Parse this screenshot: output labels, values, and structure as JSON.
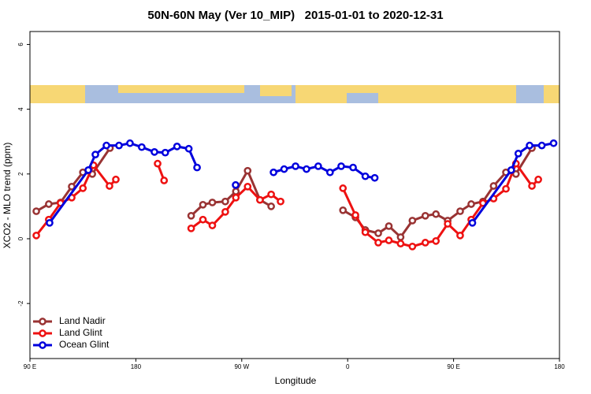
{
  "chart_data": {
    "type": "line",
    "title": "50N-60N May (Ver 10_MIP)   2015-01-01 to 2020-12-31",
    "x_label": "Longitude",
    "y_label": "XCO2 - MLO trend (ppm)",
    "xlim": [
      90,
      540
    ],
    "ylim": [
      -3.7,
      6.4
    ],
    "xticks": [
      {
        "value": 90,
        "label": "90 E"
      },
      {
        "value": 180,
        "label": "180"
      },
      {
        "value": 270,
        "label": "90 W"
      },
      {
        "value": 360,
        "label": "0"
      },
      {
        "value": 450,
        "label": "90 E"
      },
      {
        "value": 540,
        "label": "180"
      }
    ],
    "yticks": [
      -2,
      0,
      2,
      4,
      6
    ],
    "legend": "bottom-left",
    "series": [
      {
        "name": "Land Nadir",
        "color": "#993333",
        "x": [
          95.4,
          106,
          116,
          125.5,
          135,
          143,
          158,
          null,
          227,
          237,
          245,
          256,
          265,
          275,
          285.5,
          295,
          null,
          356,
          366.6,
          375,
          386,
          395,
          405,
          415,
          426,
          435,
          445,
          455.6,
          465,
          475,
          484,
          494.5,
          503,
          516.6
        ],
        "values": [
          0.85,
          1.07,
          1.12,
          1.61,
          2.05,
          2.0,
          2.8,
          null,
          0.71,
          1.05,
          1.12,
          1.15,
          1.46,
          2.1,
          1.2,
          1.0,
          null,
          0.88,
          0.66,
          0.27,
          0.17,
          0.39,
          0.05,
          0.56,
          0.71,
          0.76,
          0.56,
          0.85,
          1.07,
          1.15,
          1.63,
          2.05,
          2.0,
          2.8
        ]
      },
      {
        "name": "Land Glint",
        "color": "#ee1111",
        "x": [
          95.4,
          106,
          116,
          125.5,
          135,
          144,
          157.6,
          163,
          null,
          198.5,
          204,
          null,
          227,
          237,
          245,
          256,
          265,
          275,
          285.5,
          295,
          303,
          null,
          356,
          366.6,
          375,
          386,
          395,
          405,
          415,
          426,
          435,
          445,
          455.6,
          465,
          475,
          484,
          494.5,
          503,
          516.6,
          522
        ],
        "values": [
          0.1,
          0.59,
          1.1,
          1.27,
          1.56,
          2.27,
          1.63,
          1.83,
          null,
          2.32,
          1.8,
          null,
          0.32,
          0.59,
          0.41,
          0.83,
          1.27,
          1.61,
          1.2,
          1.37,
          1.15,
          null,
          1.56,
          0.73,
          0.2,
          -0.12,
          -0.05,
          -0.15,
          -0.24,
          -0.12,
          -0.07,
          0.46,
          0.1,
          0.59,
          1.1,
          1.24,
          1.54,
          2.32,
          1.63,
          1.83
        ]
      },
      {
        "name": "Ocean Glint",
        "color": "#0000dd",
        "x": [
          106.7,
          139.6,
          145.6,
          155,
          165.7,
          175,
          185,
          195.8,
          205,
          215,
          225,
          232,
          null,
          264.8,
          null,
          297,
          306,
          315.7,
          325,
          335,
          345,
          354.5,
          364.6,
          375,
          383,
          null,
          466,
          499,
          505,
          514.6,
          525,
          535
        ],
        "values": [
          0.49,
          2.12,
          2.6,
          2.88,
          2.88,
          2.95,
          2.83,
          2.68,
          2.66,
          2.85,
          2.78,
          2.2,
          null,
          1.66,
          null,
          2.05,
          2.15,
          2.24,
          2.15,
          2.24,
          2.05,
          2.24,
          2.2,
          1.93,
          1.88,
          null,
          0.49,
          2.12,
          2.63,
          2.88,
          2.88,
          2.95
        ]
      }
    ]
  }
}
